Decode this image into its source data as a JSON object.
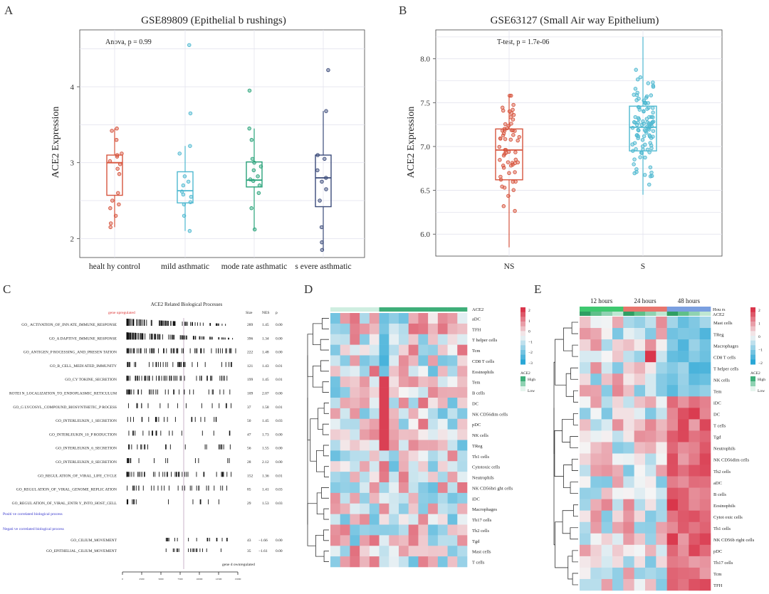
{
  "panels": {
    "A": {
      "letter": "A"
    },
    "B": {
      "letter": "B"
    },
    "C": {
      "letter": "C"
    },
    "D": {
      "letter": "D"
    },
    "E": {
      "letter": "E"
    }
  },
  "colors": {
    "healthy": "#d6553e",
    "mild": "#4eb8d0",
    "moderate": "#2aa37a",
    "severe": "#3b4b7a",
    "ns": "#d6553e",
    "s": "#4eb8d0",
    "hm_high": "#d9364b",
    "hm_low": "#2aa7d6",
    "hm_mid": "#f5f5f5",
    "ace2_bar": "#3fae79"
  },
  "chart_data": [
    {
      "type": "box",
      "id": "A",
      "title": "GSE89809 (Epithelial b   rushings)",
      "annotation": "Anova, p = 0.99",
      "ylabel": "ACE2 Expression",
      "ylim": [
        1.75,
        4.75
      ],
      "yticks": [
        2,
        3,
        4
      ],
      "categories": [
        "healt hy control",
        "mild asthmatic",
        "mode rate asthmatic",
        "s evere asthmatic"
      ],
      "boxes": [
        {
          "q1": 2.57,
          "median": 3.0,
          "q3": 3.1,
          "lo": 2.15,
          "hi": 3.45
        },
        {
          "q1": 2.47,
          "median": 2.63,
          "q3": 2.88,
          "lo": 2.1,
          "hi": 3.22
        },
        {
          "q1": 2.68,
          "median": 2.77,
          "q3": 3.01,
          "lo": 2.12,
          "hi": 3.45
        },
        {
          "q1": 2.42,
          "median": 2.8,
          "q3": 3.1,
          "lo": 1.85,
          "hi": 3.68
        }
      ],
      "points": [
        [
          3.45,
          3.42,
          3.3,
          3.12,
          3.1,
          3.08,
          3.02,
          2.98,
          2.92,
          2.85,
          2.6,
          2.5,
          2.45,
          2.4,
          2.3,
          2.2,
          2.15
        ],
        [
          4.55,
          3.65,
          3.22,
          3.12,
          2.82,
          2.75,
          2.7,
          2.62,
          2.58,
          2.55,
          2.48,
          2.45,
          2.3,
          2.1
        ],
        [
          3.95,
          3.45,
          3.3,
          3.05,
          3.0,
          2.95,
          2.9,
          2.82,
          2.78,
          2.76,
          2.7,
          2.6,
          2.4,
          2.12
        ],
        [
          4.22,
          3.68,
          3.1,
          3.05,
          2.9,
          2.8,
          2.75,
          2.65,
          2.5,
          2.15,
          1.95,
          1.85
        ]
      ]
    },
    {
      "type": "box",
      "id": "B",
      "title": "GSE63127 (Small Air   way Epithelium)",
      "annotation": "T-test, p = 1.7e-06",
      "ylabel": "ACE2 Expression",
      "ylim": [
        5.75,
        8.33
      ],
      "yticks": [
        6.0,
        6.5,
        7.0,
        7.5,
        8.0
      ],
      "tick_labels": [
        "6.0",
        "6.5",
        "7.0",
        "7.5",
        "8.0"
      ],
      "categories": [
        "NS",
        "S"
      ],
      "boxes": [
        {
          "q1": 6.62,
          "median": 6.96,
          "q3": 7.2,
          "lo": 5.85,
          "hi": 7.58
        },
        {
          "q1": 6.95,
          "median": 7.22,
          "q3": 7.46,
          "lo": 6.45,
          "hi": 8.25
        }
      ],
      "n_points": [
        60,
        100
      ]
    },
    {
      "type": "table",
      "id": "C",
      "title": "ACE2 Related Biological Processes",
      "up_label": "gene upregulated",
      "down_label": "gene d ownregulated",
      "pos_label": "Positi ve correlated biological process",
      "neg_label": "Negati ve correlated biological process",
      "headers": [
        "Size",
        "NES",
        "p"
      ],
      "rows": [
        {
          "term": "GO_ ACTIVATION_OF_INN ATE_IMMUNE_RESPONSE",
          "size": "289",
          "nes": "1.45",
          "p": "0.00"
        },
        {
          "term": "GO_A DAPTIVE_IMMUNE_RESPONSE",
          "size": "396",
          "nes": "1.34",
          "p": "0.00"
        },
        {
          "term": "GO_ANTIGEN_P ROCESSING_AND_PRESEN   TATION",
          "size": "222",
          "nes": "1.48",
          "p": "0.00"
        },
        {
          "term": "GO_B_CELL_MEDI ATED_IMMUNITY",
          "size": "121",
          "nes": "1.43",
          "p": "0.01"
        },
        {
          "term": "GO_CY TOKINE_SECRETION",
          "size": "199",
          "nes": "1.45",
          "p": "0.01"
        },
        {
          "term": "ROTEI N_LOCALIZATION_TO_ENDOPLASMIC_RETICULUM",
          "size": "109",
          "nes": "2.07",
          "p": "0.00"
        },
        {
          "term": "GO_G LYCOSYL_COMPOUND_BIOSYNTHETIC_P ROCESS",
          "size": "37",
          "nes": "1.58",
          "p": "0.01"
        },
        {
          "term": "GO_INTERLEUKIN_1_SECRETION",
          "size": "50",
          "nes": "1.45",
          "p": "0.03"
        },
        {
          "term": "GO_INTERLEUKIN_10_P RODUCTION",
          "size": "47",
          "nes": "1.73",
          "p": "0.00"
        },
        {
          "term": "GO_INTERLEUKIN_6_SECRETION",
          "size": "56",
          "nes": "1.55",
          "p": "0.00"
        },
        {
          "term": "GO_INTERLEUKIN_8_SECRETION",
          "size": "28",
          "nes": "2.12",
          "p": "0.00"
        },
        {
          "term": "GO_REGUL ATION_OF_VIRAL_LIFE_CYCLE",
          "size": "152",
          "nes": "1.36",
          "p": "0.01"
        },
        {
          "term": "GO_REGUL ATION_OF_VIRAL_GENOME_REPLIC ATION",
          "size": "85",
          "nes": "1.41",
          "p": "0.03"
        },
        {
          "term": "GO_REGUL ATION_OF_VIRAL_ENTR Y_INTO_HOST_CELL",
          "size": "29",
          "nes": "1.53",
          "p": "0.03"
        }
      ],
      "neg_rows": [
        {
          "term": "GO_CILIUM_MOVEMENT",
          "size": "43",
          "nes": "−1.66",
          "p": "0.00"
        },
        {
          "term": "GO_EPITHELIAL_CILIUM_MOVEMENT",
          "size": "35",
          "nes": "−1.61",
          "p": "0.00"
        }
      ],
      "axis_ticks": [
        "0",
        "2500",
        "5000",
        "7500",
        "10000",
        "12500",
        "15000"
      ]
    },
    {
      "type": "heatmap",
      "id": "D",
      "top_label": "ACE2",
      "rows": [
        "aDC",
        "TFH",
        "T helper cells",
        "Tcm",
        "CD8 T cells",
        "Eosinophils",
        "Tem",
        "B cells",
        "DC",
        "NK CD56dim cells",
        "pDC",
        "NK cells",
        "TReg",
        "Th1 cells",
        "Cytotoxic cells",
        "Neutrophils",
        "NK CD56bri ght cells",
        "iDC",
        "Macrophages",
        "Th17 cells",
        "Th2 cells",
        "Tgd",
        "Mast cells",
        "T cells"
      ],
      "legend_ticks": [
        "2",
        "1",
        "0",
        "−1",
        "−2",
        "−3"
      ],
      "legend_title": "ACE2",
      "legend_high": "High",
      "legend_low": "Low"
    },
    {
      "type": "heatmap",
      "id": "E",
      "time_labels": [
        "12 hours",
        "24 hours",
        "48 hours"
      ],
      "top_labels": [
        "Hou rs",
        "ACE2"
      ],
      "rows": [
        "Mast cells",
        "TReg",
        "Macrophages",
        "CD8 T cells",
        "T helper cells",
        "NK cells",
        "Tem",
        "iDC",
        "DC",
        "T cells",
        "Tgd",
        "Neutrophils",
        "NK CD56dim cells",
        "Th2 cells",
        "aDC",
        "B cells",
        "Eosinophils",
        "Cytot oxic cells",
        "Th1 cells",
        "NK CD56b right cells",
        "pDC",
        "Th17 cells",
        "Tcm",
        "TFH"
      ],
      "legend_ticks": [
        "2",
        "1",
        "0",
        "−1",
        "−2"
      ],
      "legend_title": "ACE2",
      "legend_high": "High",
      "legend_low": "Low"
    }
  ]
}
